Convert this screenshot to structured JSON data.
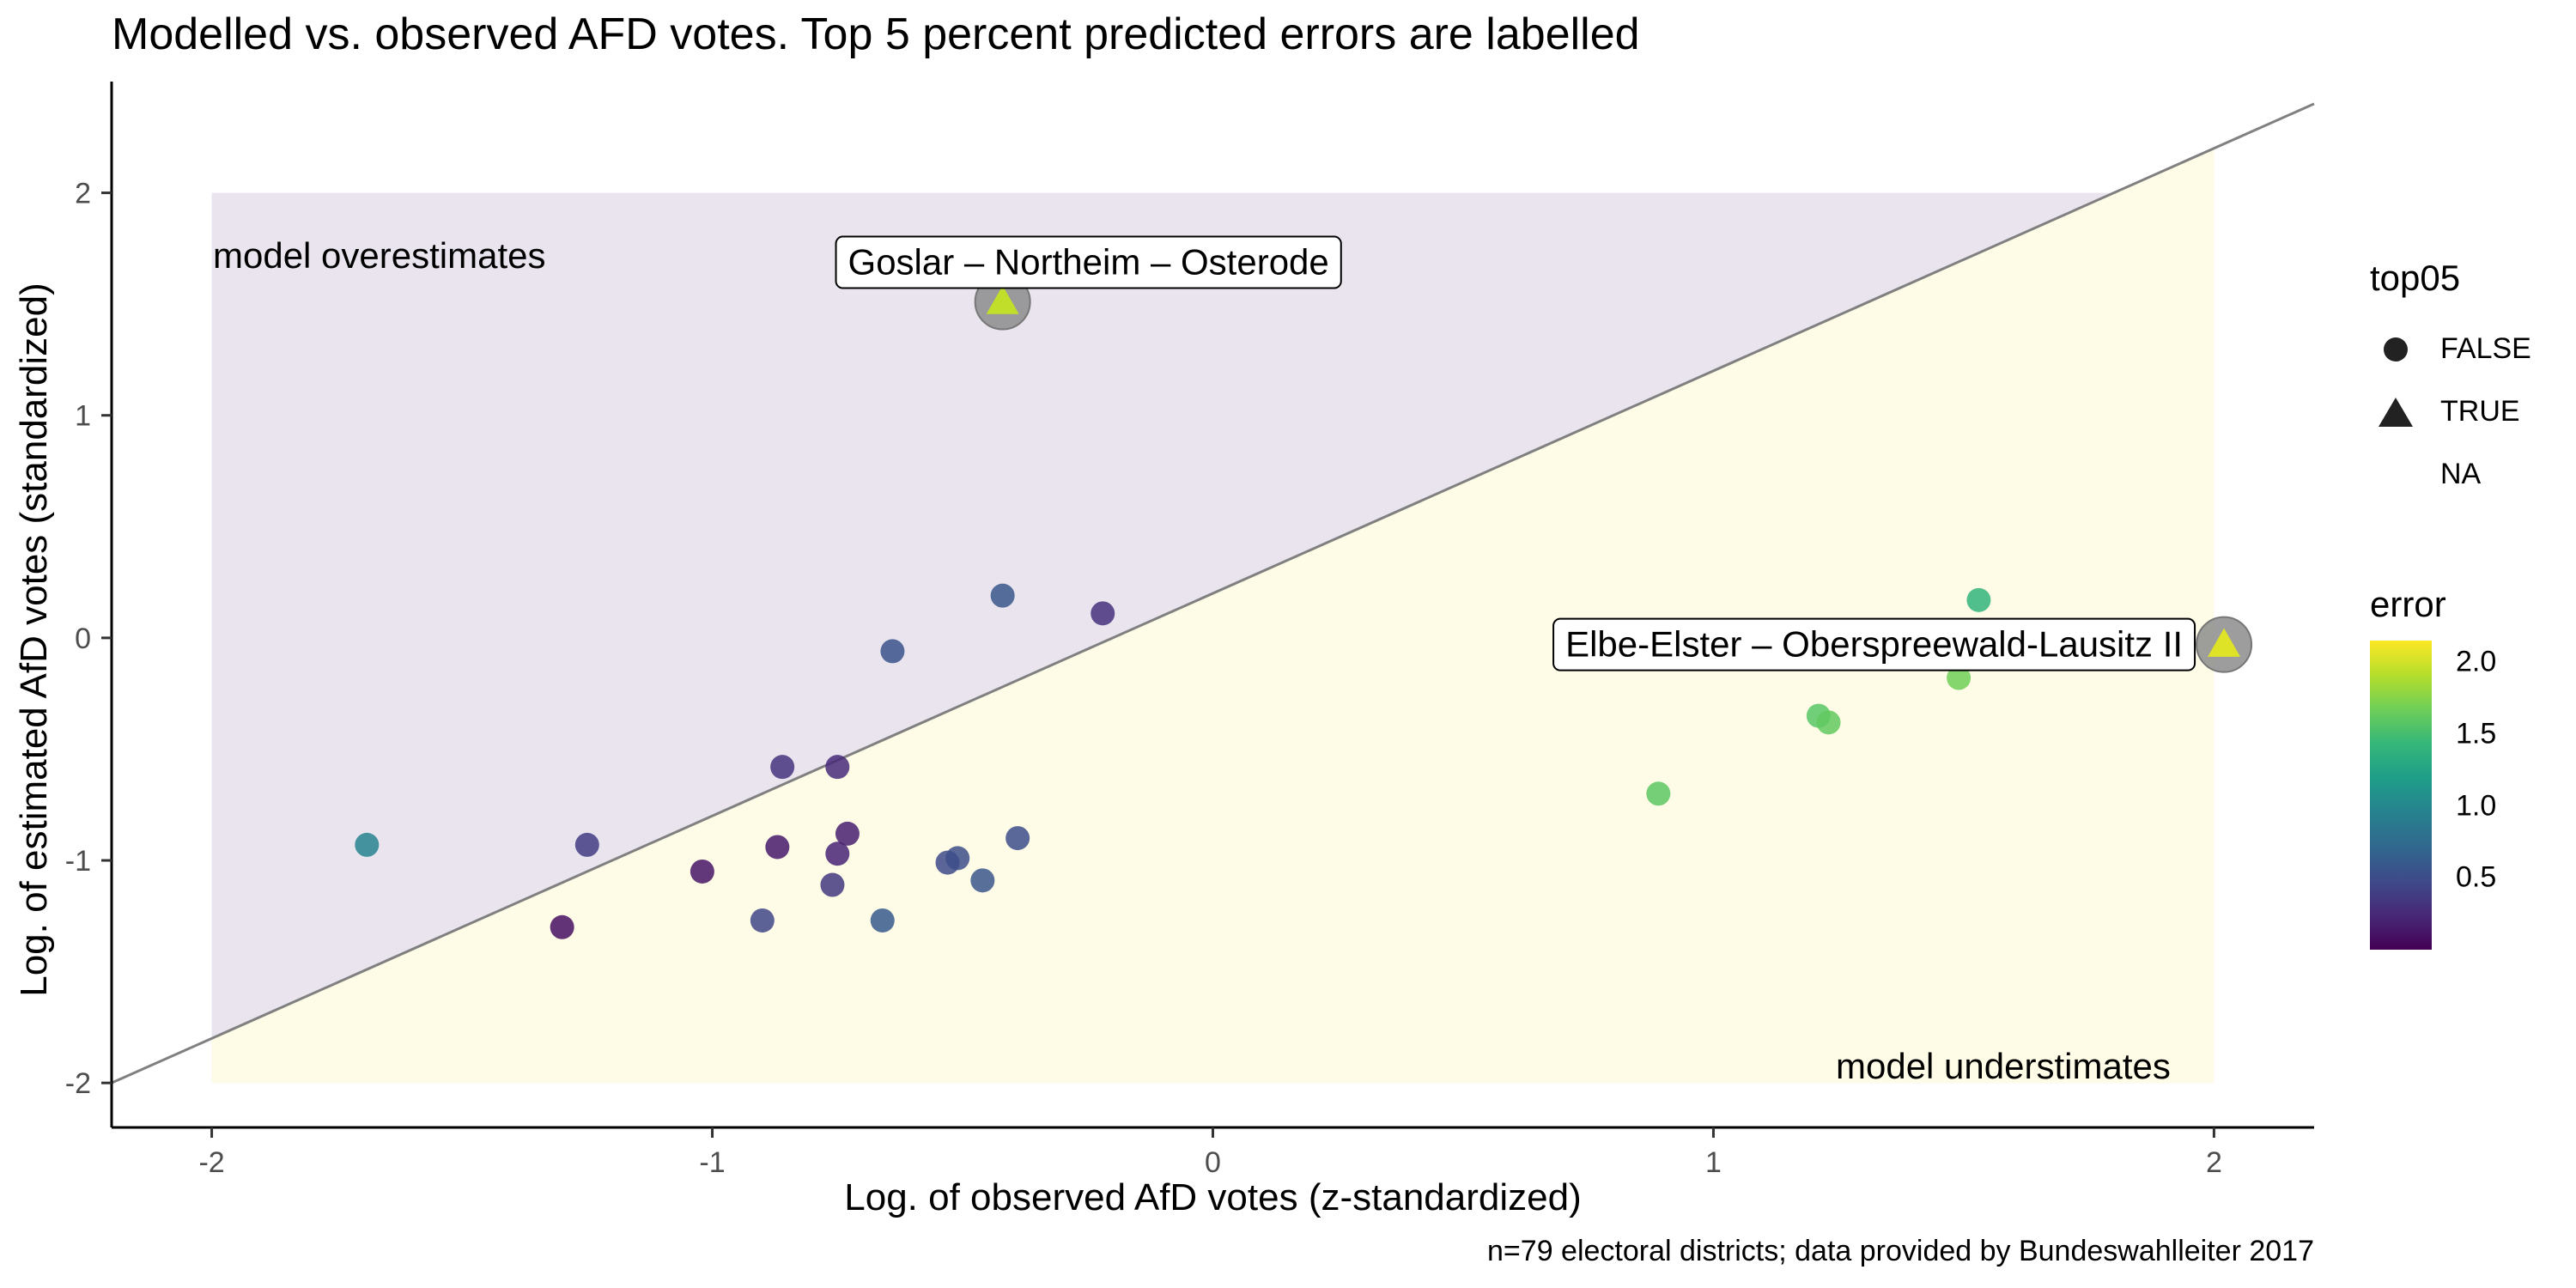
{
  "chart_data": {
    "type": "scatter",
    "title": "Modelled vs. observed AFD votes. Top 5 percent predicted errors are labelled",
    "xlabel": "Log. of observed AfD votes (z-standardized)",
    "ylabel": "Log. of estimated AfD votes (standardized)",
    "caption": "n=79 electoral districts; data provided by Bundeswahlleiter 2017",
    "xlim": [
      -2.2,
      2.2
    ],
    "ylim": [
      -2.2,
      2.5
    ],
    "x_ticks": [
      -2,
      -1,
      0,
      1,
      2
    ],
    "y_ticks": [
      -2,
      -1,
      0,
      1,
      2
    ],
    "regions": {
      "over_label": "model overestimates",
      "under_label": "model understimates",
      "over_color": "#e9e4ee",
      "under_color": "#fefbe6"
    },
    "reference_line": {
      "slope": 1,
      "intercept": 0.2
    },
    "colorscale": {
      "title": "error",
      "ticks": [
        0.5,
        1.0,
        1.5,
        2.0
      ],
      "min": 0.0,
      "max": 2.15
    },
    "shape_legend": {
      "title": "top05",
      "entries": [
        "FALSE",
        "TRUE",
        "NA"
      ]
    },
    "points": [
      {
        "x": -1.69,
        "y": -0.93,
        "error": 0.97,
        "top05": false
      },
      {
        "x": -1.3,
        "y": -1.3,
        "error": 0.1,
        "top05": false
      },
      {
        "x": -1.25,
        "y": -0.93,
        "error": 0.38,
        "top05": false
      },
      {
        "x": -1.02,
        "y": -1.05,
        "error": 0.12,
        "top05": false
      },
      {
        "x": -0.9,
        "y": -1.27,
        "error": 0.45,
        "top05": false
      },
      {
        "x": -0.87,
        "y": -0.94,
        "error": 0.15,
        "top05": false
      },
      {
        "x": -0.86,
        "y": -0.58,
        "error": 0.32,
        "top05": false
      },
      {
        "x": -0.76,
        "y": -1.11,
        "error": 0.35,
        "top05": false
      },
      {
        "x": -0.75,
        "y": -0.97,
        "error": 0.22,
        "top05": false
      },
      {
        "x": -0.75,
        "y": -0.58,
        "error": 0.25,
        "top05": false
      },
      {
        "x": -0.73,
        "y": -0.88,
        "error": 0.18,
        "top05": false
      },
      {
        "x": -0.66,
        "y": -1.27,
        "error": 0.6,
        "top05": false
      },
      {
        "x": -0.64,
        "y": -0.06,
        "error": 0.55,
        "top05": false
      },
      {
        "x": -0.53,
        "y": -1.01,
        "error": 0.48,
        "top05": false
      },
      {
        "x": -0.51,
        "y": -0.99,
        "error": 0.5,
        "top05": false
      },
      {
        "x": -0.46,
        "y": -1.09,
        "error": 0.57,
        "top05": false
      },
      {
        "x": -0.42,
        "y": 0.19,
        "error": 0.58,
        "top05": false
      },
      {
        "x": -0.39,
        "y": -0.9,
        "error": 0.51,
        "top05": false
      },
      {
        "x": -0.22,
        "y": 0.11,
        "error": 0.3,
        "top05": false
      },
      {
        "x": 0.89,
        "y": -0.7,
        "error": 1.6,
        "top05": false
      },
      {
        "x": 1.21,
        "y": -0.35,
        "error": 1.58,
        "top05": false
      },
      {
        "x": 1.23,
        "y": -0.38,
        "error": 1.62,
        "top05": false
      },
      {
        "x": 1.49,
        "y": -0.18,
        "error": 1.68,
        "top05": false
      },
      {
        "x": 1.53,
        "y": 0.17,
        "error": 1.4,
        "top05": false
      },
      {
        "x": -0.42,
        "y": 1.51,
        "error": 1.95,
        "top05": true,
        "label": "Goslar – Northeim – Osterode"
      },
      {
        "x": 2.02,
        "y": -0.03,
        "error": 2.05,
        "top05": true,
        "label": "Elbe-Elster – Oberspreewald-Lausitz II"
      }
    ]
  }
}
